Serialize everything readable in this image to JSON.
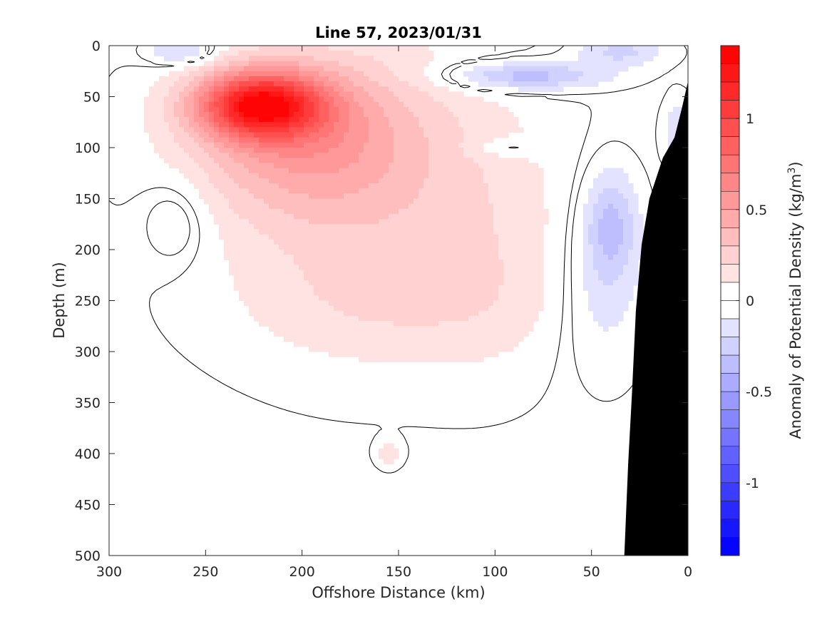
{
  "chart_data": {
    "type": "heatmap",
    "subtype": "filled-contour section",
    "title": "Line 57, 2023/01/31",
    "xlabel": "Offshore Distance (km)",
    "ylabel": "Depth (m)",
    "xlim": [
      300,
      0
    ],
    "ylim": [
      500,
      0
    ],
    "x_reversed": true,
    "y_reversed": true,
    "xticks": [
      "300",
      "250",
      "200",
      "150",
      "100",
      "50",
      "0"
    ],
    "yticks": [
      "0",
      "50",
      "100",
      "150",
      "200",
      "250",
      "300",
      "350",
      "400",
      "450",
      "500"
    ],
    "grid": false,
    "colorbar": {
      "label": "Anomaly of Potential Density (kg/m",
      "label_superscript": "3",
      "label_close": ")",
      "ticks": [
        "1",
        "0.5",
        "0",
        "-0.5",
        "-1"
      ],
      "tick_values": [
        1,
        0.5,
        0,
        -0.5,
        -1
      ],
      "range": [
        -1.4,
        1.4
      ],
      "levels": 28,
      "colormap": "blue-white-red",
      "neg_color": "#0000ff",
      "zero_color": "#ffffff",
      "pos_color": "#ff0000"
    },
    "features": [
      {
        "name": "Surface-intensified positive density anomaly core",
        "value": 1.4,
        "distance_km": 220,
        "depth_m": 55
      },
      {
        "name": "Positive anomaly tongue extending offshore",
        "value": 0.15,
        "distance_km": [
          280,
          140
        ],
        "depth_m": [
          20,
          290
        ]
      },
      {
        "name": "Near-surface negative anomaly",
        "value": -0.35,
        "distance_km": 85,
        "depth_m": 30
      },
      {
        "name": "Near-surface negative anomaly",
        "value": -0.2,
        "distance_km": 260,
        "depth_m": 5
      },
      {
        "name": "Near-surface negative anomaly",
        "value": -0.2,
        "distance_km": 35,
        "depth_m": 5
      },
      {
        "name": "Subsurface negative anomaly near shelf",
        "value": -0.3,
        "distance_km": 40,
        "depth_m": 170
      },
      {
        "name": "Offshore negative anomaly",
        "value": -0.1,
        "distance_km": 265,
        "depth_m": 170
      }
    ],
    "bathymetry": {
      "color": "#000000",
      "bottom_profile": [
        [
          0,
          35
        ],
        [
          3,
          60
        ],
        [
          7,
          90
        ],
        [
          13,
          110
        ],
        [
          20,
          150
        ],
        [
          24,
          195
        ],
        [
          27,
          260
        ],
        [
          29,
          340
        ],
        [
          31,
          410
        ],
        [
          33,
          500
        ]
      ]
    }
  }
}
